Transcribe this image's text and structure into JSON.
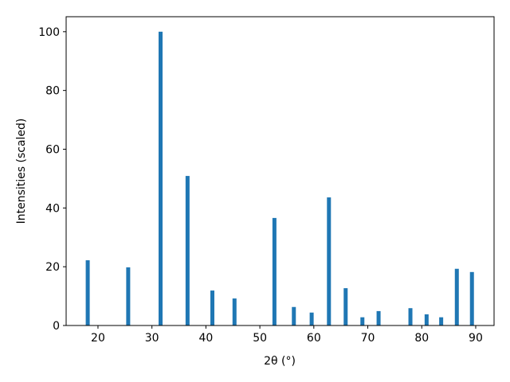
{
  "chart_data": {
    "type": "bar",
    "x_label": "2θ (°)",
    "y_label": "Intensities (scaled)",
    "x": [
      18.1,
      25.6,
      31.6,
      36.6,
      41.2,
      45.3,
      52.7,
      56.3,
      59.6,
      62.8,
      65.9,
      69.0,
      72.0,
      77.9,
      80.9,
      83.6,
      86.5,
      89.3
    ],
    "values": [
      22.2,
      19.8,
      100,
      50.9,
      11.9,
      9.2,
      36.6,
      6.3,
      4.4,
      43.6,
      12.7,
      2.8,
      4.9,
      5.9,
      3.8,
      2.8,
      19.3,
      18.2
    ],
    "color": "#1f77b4",
    "xlim": [
      14.1,
      93.4
    ],
    "xticks": [
      20,
      30,
      40,
      50,
      60,
      70,
      80,
      90
    ],
    "ylim": [
      0,
      105.1
    ],
    "yticks": [
      0,
      20,
      40,
      60,
      80,
      100
    ],
    "grid": false
  }
}
